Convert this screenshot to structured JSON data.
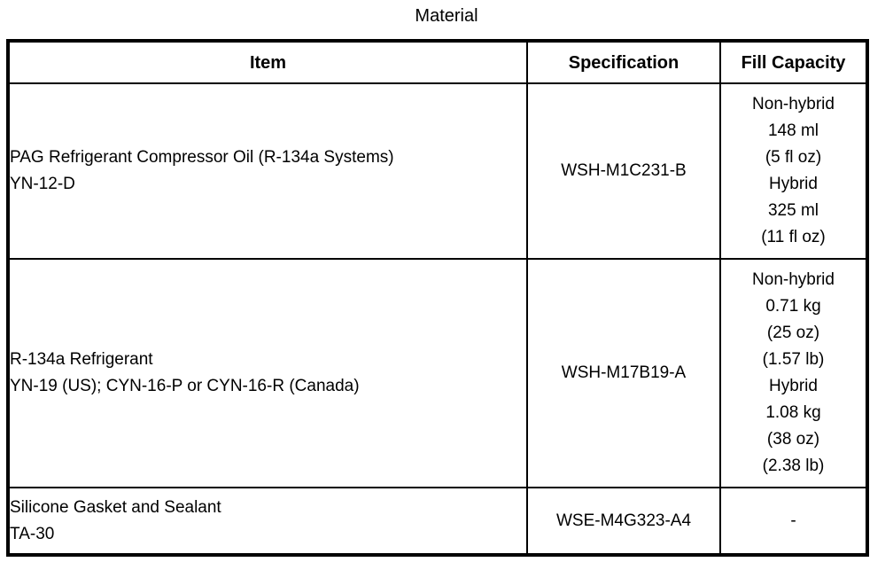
{
  "title": "Material",
  "colors": {
    "text": "#000000",
    "background": "#ffffff",
    "border": "#000000"
  },
  "table": {
    "columns": {
      "item": "Item",
      "specification": "Specification",
      "fill_capacity": "Fill Capacity"
    },
    "rows": [
      {
        "item_lines": [
          "PAG Refrigerant Compressor Oil (R-134a Systems)",
          "YN-12-D"
        ],
        "specification": "WSH-M1C231-B",
        "fill_capacity_lines": [
          "Non-hybrid",
          "148 ml",
          "(5 fl oz)",
          "Hybrid",
          "325 ml",
          "(11 fl oz)"
        ]
      },
      {
        "item_lines": [
          "R-134a Refrigerant",
          "YN-19 (US); CYN-16-P or CYN-16-R (Canada)"
        ],
        "specification": "WSH-M17B19-A",
        "fill_capacity_lines": [
          "Non-hybrid",
          "0.71 kg",
          "(25 oz)",
          "(1.57 lb)",
          "Hybrid",
          "1.08 kg",
          "(38 oz)",
          "(2.38 lb)"
        ]
      },
      {
        "item_lines": [
          "Silicone Gasket and Sealant",
          "TA-30"
        ],
        "specification": "WSE-M4G323-A4",
        "fill_capacity_lines": [
          "-"
        ]
      }
    ]
  }
}
